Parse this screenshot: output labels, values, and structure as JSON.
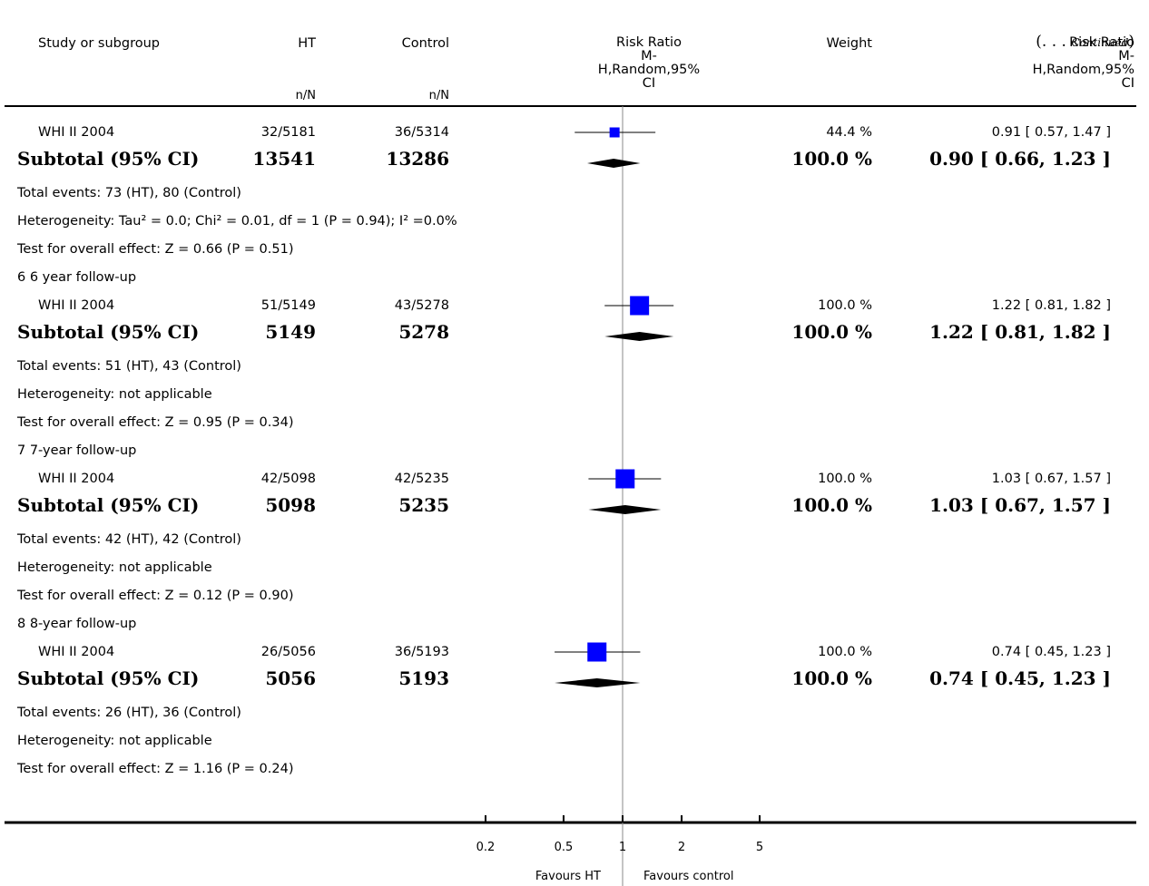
{
  "continued": {
    "open": "(. . . ",
    "label": "Continued",
    "close": ")"
  },
  "columns": {
    "study": "Study or subgroup",
    "ht": "HT",
    "control": "Control",
    "ht_sub": "n/N",
    "control_sub": "n/N",
    "rr": {
      "line1": "Risk Ratio",
      "line2": "M-",
      "line3": "H,Random,95%",
      "line4": "CI"
    },
    "weight": "Weight",
    "rr_right": {
      "line1": "Risk Ratio",
      "line2": "M-",
      "line3": "H,Random,95%",
      "line4": "CI"
    }
  },
  "rows": [
    {
      "kind": "study",
      "label": "WHI II 2004",
      "ht": "32/5181",
      "control": "36/5314",
      "weight": "44.4 %",
      "ci": "0.91 [ 0.57, 1.47 ]"
    },
    {
      "kind": "subtotal",
      "label": "Subtotal (95% CI)",
      "ht": "13541",
      "control": "13286",
      "weight": "100.0 %",
      "ci": "0.90 [ 0.66, 1.23 ]"
    },
    {
      "kind": "text",
      "label": "Total events: 73 (HT), 80 (Control)"
    },
    {
      "kind": "text",
      "label": "Heterogeneity: Tau² = 0.0; Chi² = 0.01, df = 1 (P = 0.94); I² =0.0%"
    },
    {
      "kind": "text",
      "label": "Test for overall effect: Z = 0.66 (P = 0.51)"
    },
    {
      "kind": "text",
      "label": "6 6 year follow-up"
    },
    {
      "kind": "study",
      "label": "WHI II 2004",
      "ht": "51/5149",
      "control": "43/5278",
      "weight": "100.0 %",
      "ci": "1.22 [ 0.81, 1.82 ]"
    },
    {
      "kind": "subtotal",
      "label": "Subtotal (95% CI)",
      "ht": "5149",
      "control": "5278",
      "weight": "100.0 %",
      "ci": "1.22 [ 0.81, 1.82 ]"
    },
    {
      "kind": "text",
      "label": "Total events: 51 (HT), 43 (Control)"
    },
    {
      "kind": "text",
      "label": "Heterogeneity: not applicable"
    },
    {
      "kind": "text",
      "label": "Test for overall effect: Z = 0.95 (P = 0.34)"
    },
    {
      "kind": "text",
      "label": "7 7-year follow-up"
    },
    {
      "kind": "study",
      "label": "WHI II 2004",
      "ht": "42/5098",
      "control": "42/5235",
      "weight": "100.0 %",
      "ci": "1.03 [ 0.67, 1.57 ]"
    },
    {
      "kind": "subtotal",
      "label": "Subtotal (95% CI)",
      "ht": "5098",
      "control": "5235",
      "weight": "100.0 %",
      "ci": "1.03 [ 0.67, 1.57 ]"
    },
    {
      "kind": "text",
      "label": "Total events: 42 (HT), 42 (Control)"
    },
    {
      "kind": "text",
      "label": "Heterogeneity: not applicable"
    },
    {
      "kind": "text",
      "label": "Test for overall effect: Z = 0.12 (P = 0.90)"
    },
    {
      "kind": "text",
      "label": "8 8-year follow-up"
    },
    {
      "kind": "study",
      "label": "WHI II 2004",
      "ht": "26/5056",
      "control": "36/5193",
      "weight": "100.0 %",
      "ci": "0.74 [ 0.45, 1.23 ]"
    },
    {
      "kind": "subtotal",
      "label": "Subtotal (95% CI)",
      "ht": "5056",
      "control": "5193",
      "weight": "100.0 %",
      "ci": "0.74 [ 0.45, 1.23 ]"
    },
    {
      "kind": "text",
      "label": "Total events: 26 (HT), 36 (Control)"
    },
    {
      "kind": "text",
      "label": "Heterogeneity: not applicable"
    },
    {
      "kind": "text",
      "label": "Test for overall effect: Z = 1.16 (P = 0.24)"
    }
  ],
  "axis": {
    "ticks": [
      "0.2",
      "0.5",
      "1",
      "2",
      "5"
    ],
    "favours_left": "Favours HT",
    "favours_right": "Favours control"
  },
  "chart_data": {
    "type": "forest",
    "scale": "log",
    "xlim": [
      0.2,
      5
    ],
    "null_value": 1,
    "ticks": [
      0.2,
      0.5,
      1,
      2,
      5
    ],
    "marker_color": "#0000ff",
    "studies": [
      {
        "label": "WHI II 2004",
        "rr": 0.91,
        "lo": 0.57,
        "hi": 1.47,
        "weight": 44.4
      },
      {
        "label": "WHI II 2004",
        "rr": 1.22,
        "lo": 0.81,
        "hi": 1.82,
        "weight": 100.0
      },
      {
        "label": "WHI II 2004",
        "rr": 1.03,
        "lo": 0.67,
        "hi": 1.57,
        "weight": 100.0
      },
      {
        "label": "WHI II 2004",
        "rr": 0.74,
        "lo": 0.45,
        "hi": 1.23,
        "weight": 100.0
      }
    ],
    "subtotals": [
      {
        "label": "Subtotal (95% CI)",
        "rr": 0.9,
        "lo": 0.66,
        "hi": 1.23
      },
      {
        "label": "Subtotal (95% CI)",
        "rr": 1.22,
        "lo": 0.81,
        "hi": 1.82
      },
      {
        "label": "Subtotal (95% CI)",
        "rr": 1.03,
        "lo": 0.67,
        "hi": 1.57
      },
      {
        "label": "Subtotal (95% CI)",
        "rr": 0.74,
        "lo": 0.45,
        "hi": 1.23
      }
    ]
  }
}
